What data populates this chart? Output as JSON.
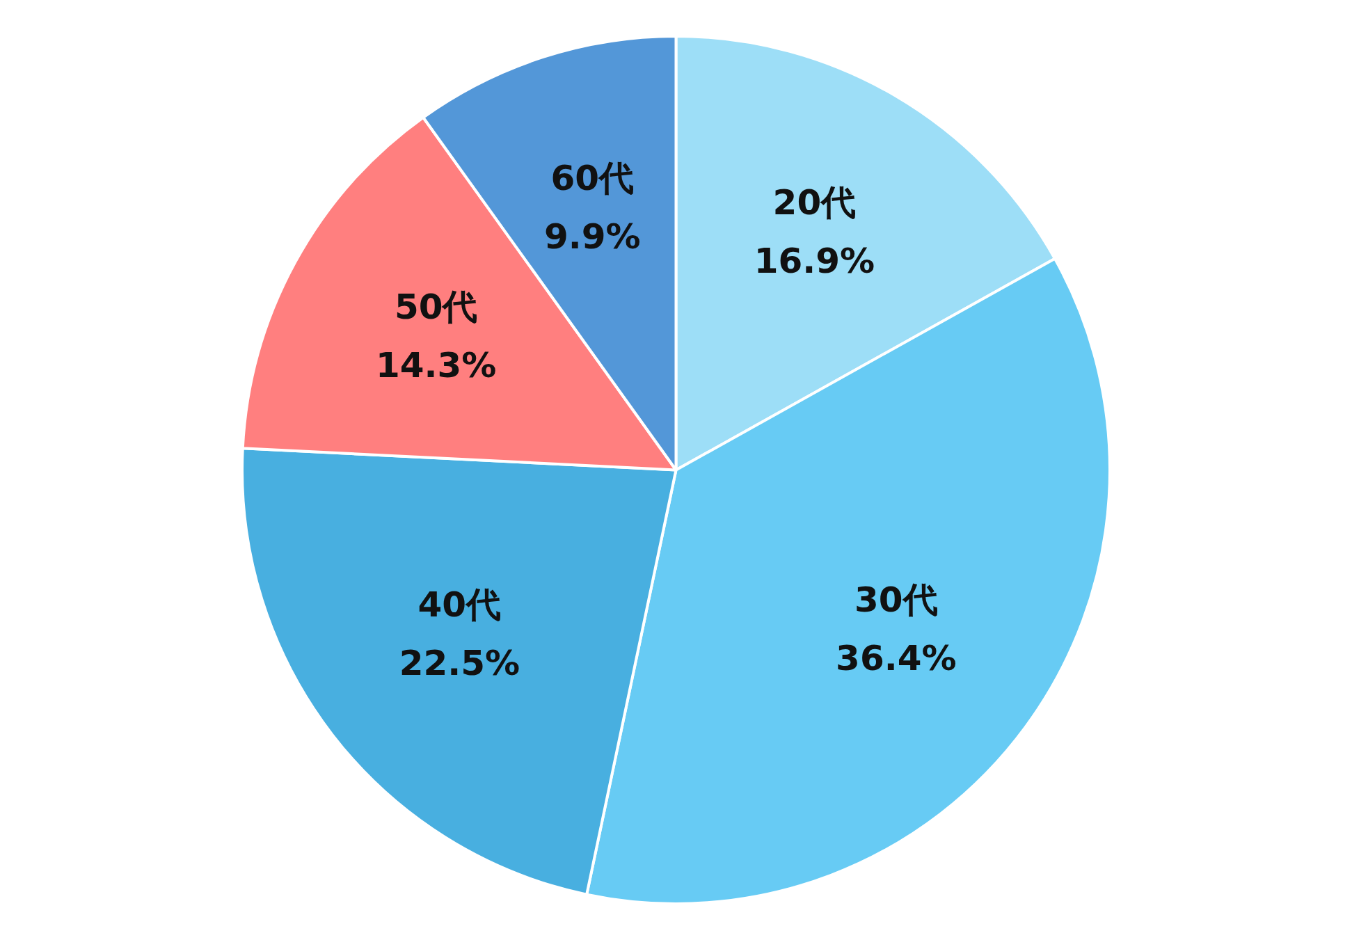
{
  "chart_data": {
    "type": "pie",
    "categories": [
      "20代",
      "30代",
      "40代",
      "50代",
      "60代"
    ],
    "values": [
      16.9,
      36.4,
      22.5,
      14.3,
      9.9
    ],
    "colors": [
      "#9ddef7",
      "#67cbf4",
      "#48afe0",
      "#ff7f7f",
      "#5397d8"
    ],
    "value_labels": [
      "16.9%",
      "36.4%",
      "22.5%",
      "14.3%",
      "9.9%"
    ],
    "legend": false
  }
}
